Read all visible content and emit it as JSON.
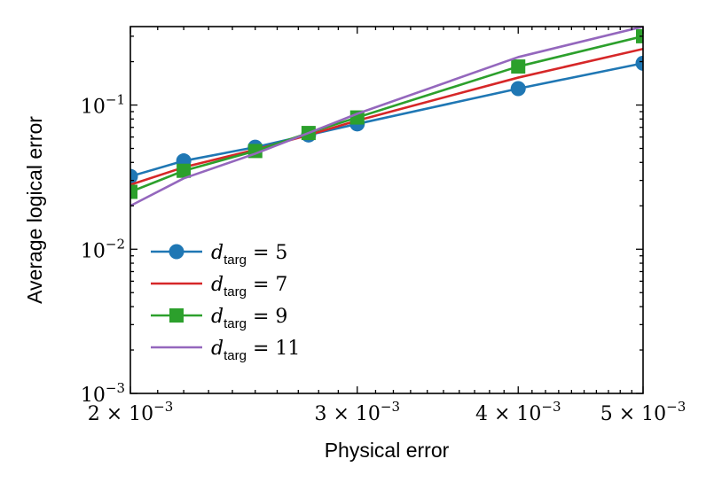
{
  "chart_data": {
    "type": "line",
    "xlabel": "Physical error",
    "ylabel": "Average logical error",
    "xscale": "log",
    "yscale": "log",
    "xlim": [
      0.002,
      0.005
    ],
    "ylim": [
      0.001,
      0.35
    ],
    "x_ticks": [
      {
        "value": 0.002,
        "mant": "2",
        "exp": "−3"
      },
      {
        "value": 0.003,
        "mant": "3",
        "exp": "−3"
      },
      {
        "value": 0.004,
        "mant": "4",
        "exp": "−3"
      },
      {
        "value": 0.005,
        "mant": "5",
        "exp": "−3"
      }
    ],
    "y_ticks": [
      {
        "value": 0.001,
        "exp": "−3"
      },
      {
        "value": 0.01,
        "exp": "−2"
      },
      {
        "value": 0.1,
        "exp": "−1"
      }
    ],
    "grid": false,
    "legend_position": "lower-left",
    "x": [
      0.002,
      0.0022,
      0.0025,
      0.00275,
      0.003,
      0.004,
      0.005
    ],
    "series": [
      {
        "name": "d_targ = 5",
        "sub": "targ",
        "num": "5",
        "color": "#1f77b4",
        "marker": "circle",
        "values": [
          0.032,
          0.041,
          0.051,
          0.062,
          0.074,
          0.13,
          0.195
        ]
      },
      {
        "name": "d_targ = 7",
        "sub": "targ",
        "num": "7",
        "color": "#d62728",
        "marker": "none",
        "values": [
          0.028,
          0.037,
          0.049,
          0.062,
          0.078,
          0.155,
          0.245
        ]
      },
      {
        "name": "d_targ = 9",
        "sub": "targ",
        "num": "9",
        "color": "#2ca02c",
        "marker": "square",
        "values": [
          0.025,
          0.035,
          0.048,
          0.064,
          0.082,
          0.185,
          0.3
        ]
      },
      {
        "name": "d_targ = 11",
        "sub": "targ",
        "num": "11",
        "color": "#9467bd",
        "marker": "none",
        "values": [
          0.02,
          0.031,
          0.046,
          0.064,
          0.087,
          0.215,
          0.35
        ]
      }
    ]
  }
}
